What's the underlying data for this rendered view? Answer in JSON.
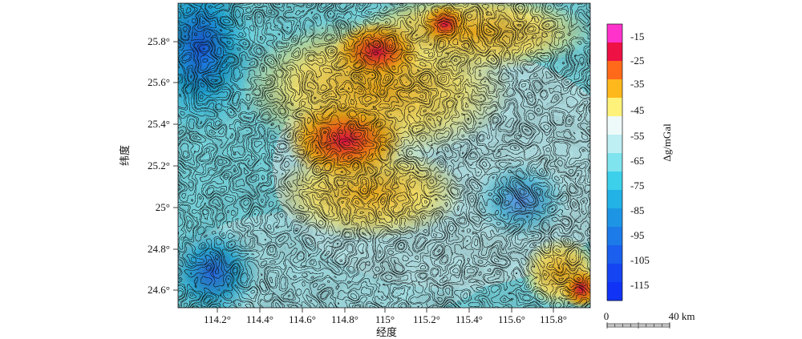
{
  "map": {
    "x_axis_title": "经度",
    "y_axis_title": "纬度",
    "x_ticks": [
      "114.2°",
      "114.4°",
      "114.6°",
      "114.8°",
      "115°",
      "115.2°",
      "115.4°",
      "115.6°",
      "115.8°"
    ],
    "y_ticks": [
      "25.8°",
      "25.6°",
      "25.4°",
      "25.2°",
      "25°",
      "24.8°",
      "24.6°"
    ]
  },
  "colorbar": {
    "title": "Δg/mGal",
    "labels": [
      "-15",
      "-25",
      "-35",
      "-45",
      "-55",
      "-65",
      "-75",
      "-85",
      "-95",
      "-105",
      "-115"
    ],
    "colors": [
      "#ff33cc",
      "#ee1144",
      "#ff6a1a",
      "#ffb81c",
      "#fff27a",
      "#eefafa",
      "#bdeff3",
      "#7fe4ee",
      "#3cd0ea",
      "#22b2e6",
      "#1e95e4",
      "#1c7be8",
      "#1a5fed",
      "#1545f2",
      "#1133f5"
    ]
  },
  "scale_bar": {
    "start_label": "0",
    "end_label": "40 km"
  }
}
